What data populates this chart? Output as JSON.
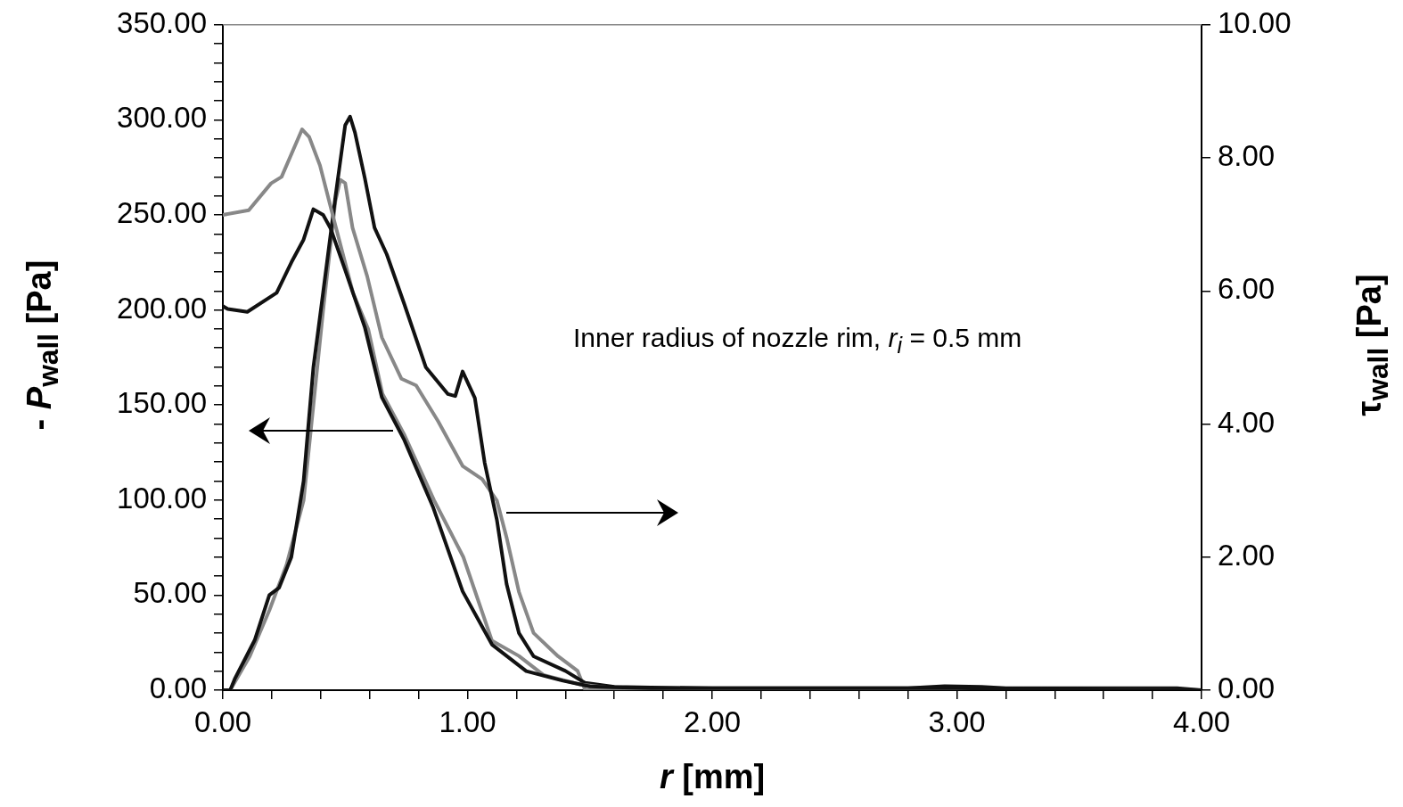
{
  "chart_data": {
    "type": "line",
    "xlabel": "r  [mm]",
    "ylabel": "- P$_{wall}$ [Pa]",
    "y2label": "τ$_{wall}$ [Pa]",
    "annotations": [
      "Inner radius of nozzle rim, r$_{i}$ = 0.5 mm"
    ],
    "xlim": [
      0,
      4
    ],
    "ylim": [
      0,
      350
    ],
    "y2lim": [
      0,
      10
    ],
    "xticks": [
      {
        "value": 0,
        "label": "0.00"
      },
      {
        "value": 0.2,
        "label": null
      },
      {
        "value": 0.4,
        "label": null
      },
      {
        "value": 0.6,
        "label": null
      },
      {
        "value": 0.8,
        "label": null
      },
      {
        "value": 1,
        "label": "1.00"
      },
      {
        "value": 1.2,
        "label": null
      },
      {
        "value": 1.4,
        "label": null
      },
      {
        "value": 1.6,
        "label": null
      },
      {
        "value": 1.8,
        "label": null
      },
      {
        "value": 2,
        "label": "2.00"
      },
      {
        "value": 2.2,
        "label": null
      },
      {
        "value": 2.4,
        "label": null
      },
      {
        "value": 2.6,
        "label": null
      },
      {
        "value": 2.8,
        "label": null
      },
      {
        "value": 3,
        "label": "3.00"
      },
      {
        "value": 3.2,
        "label": null
      },
      {
        "value": 3.4,
        "label": null
      },
      {
        "value": 3.6,
        "label": null
      },
      {
        "value": 3.8,
        "label": null
      },
      {
        "value": 4,
        "label": "4.00"
      }
    ],
    "yticks": [
      {
        "value": 0,
        "label": "0.00"
      },
      {
        "value": 10,
        "label": null
      },
      {
        "value": 20,
        "label": null
      },
      {
        "value": 30,
        "label": null
      },
      {
        "value": 40,
        "label": null
      },
      {
        "value": 50,
        "label": "50.00"
      },
      {
        "value": 60,
        "label": null
      },
      {
        "value": 70,
        "label": null
      },
      {
        "value": 80,
        "label": null
      },
      {
        "value": 90,
        "label": null
      },
      {
        "value": 100,
        "label": "100.00"
      },
      {
        "value": 110,
        "label": null
      },
      {
        "value": 120,
        "label": null
      },
      {
        "value": 130,
        "label": null
      },
      {
        "value": 140,
        "label": null
      },
      {
        "value": 150,
        "label": "150.00"
      },
      {
        "value": 160,
        "label": null
      },
      {
        "value": 170,
        "label": null
      },
      {
        "value": 180,
        "label": null
      },
      {
        "value": 190,
        "label": null
      },
      {
        "value": 200,
        "label": "200.00"
      },
      {
        "value": 210,
        "label": null
      },
      {
        "value": 220,
        "label": null
      },
      {
        "value": 230,
        "label": null
      },
      {
        "value": 240,
        "label": null
      },
      {
        "value": 250,
        "label": "250.00"
      },
      {
        "value": 260,
        "label": null
      },
      {
        "value": 270,
        "label": null
      },
      {
        "value": 280,
        "label": null
      },
      {
        "value": 290,
        "label": null
      },
      {
        "value": 300,
        "label": "300.00"
      },
      {
        "value": 310,
        "label": null
      },
      {
        "value": 320,
        "label": null
      },
      {
        "value": 330,
        "label": null
      },
      {
        "value": 340,
        "label": null
      },
      {
        "value": 350,
        "label": "350.00"
      }
    ],
    "y2ticks": [
      {
        "value": 0,
        "label": "0.00"
      },
      {
        "value": 2,
        "label": "2.00"
      },
      {
        "value": 4,
        "label": "4.00"
      },
      {
        "value": 6,
        "label": "6.00"
      },
      {
        "value": 8,
        "label": "8.00"
      },
      {
        "value": 10,
        "label": "10.00"
      }
    ],
    "grid": false,
    "legend": false,
    "marker": "none",
    "line_style": "solid",
    "series": [
      {
        "color": "#111111",
        "x": [
          0,
          0.02,
          0.1,
          0.22,
          0.28,
          0.33,
          0.37,
          0.41,
          0.44,
          0.5,
          0.58,
          0.65,
          0.74,
          0.86,
          0.98,
          1.1,
          1.24,
          1.39,
          1.5,
          1.6,
          1.75,
          2,
          3,
          4
        ],
        "values": [
          202,
          200.5,
          199,
          209,
          225,
          237,
          253,
          250,
          243,
          221,
          191,
          154,
          132,
          96,
          52,
          24,
          10,
          5,
          2,
          1.5,
          1,
          1,
          1,
          0
        ]
      },
      {
        "color": "#888888",
        "x": [
          0,
          0.106,
          0.197,
          0.24,
          0.324,
          0.353,
          0.397,
          0.459,
          0.532,
          0.594,
          0.652,
          0.743,
          0.863,
          0.983,
          1.1,
          1.21,
          1.31,
          1.46,
          1.6,
          2,
          3,
          4
        ],
        "values": [
          250,
          252.5,
          266.6,
          270,
          295,
          291,
          276,
          245,
          209,
          190,
          156,
          134,
          100,
          70,
          26,
          18,
          8,
          3,
          1,
          0.5,
          0.5,
          0
        ]
      },
      {
        "color": "#111111",
        "axis": "y2",
        "x": [
          0,
          0.03,
          0.05,
          0.13,
          0.19,
          0.23,
          0.28,
          0.33,
          0.37,
          0.41,
          0.46,
          0.5,
          0.52,
          0.54,
          0.58,
          0.62,
          0.67,
          0.74,
          0.83,
          0.92,
          0.95,
          0.98,
          1.03,
          1.07,
          1.12,
          1.16,
          1.21,
          1.27,
          1.4,
          1.48,
          1.6,
          1.75,
          2,
          2.8,
          2.95,
          3.1,
          3.2,
          3.9,
          4
        ],
        "values": [
          0,
          0,
          0.18,
          0.75,
          1.43,
          1.54,
          2,
          3.14,
          4.85,
          5.98,
          7.41,
          8.49,
          8.62,
          8.38,
          7.7,
          6.95,
          6.55,
          5.82,
          4.85,
          4.45,
          4.42,
          4.79,
          4.39,
          3.42,
          2.56,
          1.59,
          0.86,
          0.51,
          0.29,
          0.11,
          0.05,
          0.04,
          0.03,
          0.03,
          0.06,
          0.05,
          0.03,
          0.03,
          0
        ]
      },
      {
        "color": "#888888",
        "axis": "y2",
        "x": [
          0,
          0.03,
          0.11,
          0.19,
          0.26,
          0.33,
          0.37,
          0.41,
          0.46,
          0.48,
          0.5,
          0.53,
          0.59,
          0.65,
          0.73,
          0.79,
          0.88,
          0.98,
          1.06,
          1.12,
          1.16,
          1.21,
          1.27,
          1.37,
          1.45,
          1.48,
          1.55,
          2,
          3,
          4
        ],
        "values": [
          0,
          0,
          0.51,
          1.2,
          1.88,
          2.85,
          4.28,
          5.71,
          7.35,
          7.67,
          7.62,
          6.95,
          6.22,
          5.3,
          4.68,
          4.58,
          4.04,
          3.37,
          3.17,
          2.85,
          2.29,
          1.48,
          0.86,
          0.51,
          0.29,
          0.01,
          0,
          0,
          0,
          0
        ]
      }
    ]
  }
}
